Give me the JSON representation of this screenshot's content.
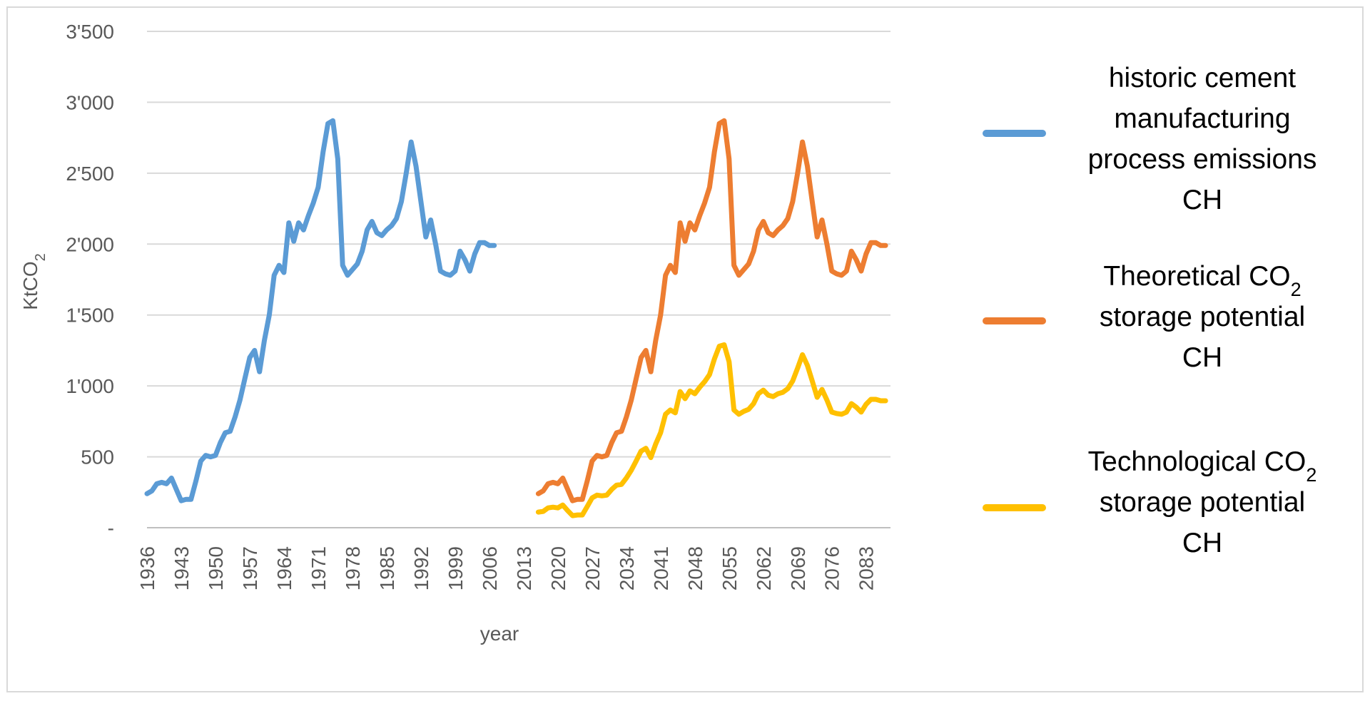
{
  "chart_data": {
    "type": "line",
    "title": "",
    "xlabel": "year",
    "ylabel": "KtCO",
    "ylabel_subscript": "2",
    "ylim": [
      0,
      3500
    ],
    "y_ticks": [
      0,
      500,
      1000,
      1500,
      2000,
      2500,
      3000,
      3500
    ],
    "y_tick_labels": [
      "-",
      "500",
      "1'000",
      "1'500",
      "2'000",
      "2'500",
      "3'000",
      "3'500"
    ],
    "xlim": [
      1936,
      2088
    ],
    "x_ticks": [
      1936,
      1943,
      1950,
      1957,
      1964,
      1971,
      1978,
      1985,
      1992,
      1999,
      2006,
      2013,
      2020,
      2027,
      2034,
      2041,
      2048,
      2055,
      2062,
      2069,
      2076,
      2083
    ],
    "grid": "horizontal",
    "legend_position": "right",
    "series": [
      {
        "name": "historic cement manufacturing process emissions CH",
        "legend_lines": [
          "historic cement",
          "manufacturing",
          "process emissions",
          "CH"
        ],
        "color": "#5b9bd5",
        "points": [
          [
            1936,
            240
          ],
          [
            1937,
            260
          ],
          [
            1938,
            310
          ],
          [
            1939,
            320
          ],
          [
            1940,
            310
          ],
          [
            1941,
            350
          ],
          [
            1942,
            270
          ],
          [
            1943,
            190
          ],
          [
            1944,
            200
          ],
          [
            1945,
            200
          ],
          [
            1946,
            330
          ],
          [
            1947,
            470
          ],
          [
            1948,
            510
          ],
          [
            1949,
            500
          ],
          [
            1950,
            510
          ],
          [
            1951,
            600
          ],
          [
            1952,
            670
          ],
          [
            1953,
            680
          ],
          [
            1954,
            780
          ],
          [
            1955,
            900
          ],
          [
            1956,
            1050
          ],
          [
            1957,
            1200
          ],
          [
            1958,
            1250
          ],
          [
            1959,
            1100
          ],
          [
            1960,
            1320
          ],
          [
            1961,
            1500
          ],
          [
            1962,
            1780
          ],
          [
            1963,
            1850
          ],
          [
            1964,
            1800
          ],
          [
            1965,
            2150
          ],
          [
            1966,
            2020
          ],
          [
            1967,
            2150
          ],
          [
            1968,
            2100
          ],
          [
            1969,
            2200
          ],
          [
            1970,
            2290
          ],
          [
            1971,
            2400
          ],
          [
            1972,
            2650
          ],
          [
            1973,
            2850
          ],
          [
            1974,
            2870
          ],
          [
            1975,
            2600
          ],
          [
            1976,
            1850
          ],
          [
            1977,
            1780
          ],
          [
            1978,
            1820
          ],
          [
            1979,
            1860
          ],
          [
            1980,
            1950
          ],
          [
            1981,
            2100
          ],
          [
            1982,
            2160
          ],
          [
            1983,
            2080
          ],
          [
            1984,
            2060
          ],
          [
            1985,
            2100
          ],
          [
            1986,
            2130
          ],
          [
            1987,
            2180
          ],
          [
            1988,
            2300
          ],
          [
            1989,
            2500
          ],
          [
            1990,
            2720
          ],
          [
            1991,
            2550
          ],
          [
            1992,
            2300
          ],
          [
            1993,
            2050
          ],
          [
            1994,
            2170
          ],
          [
            1995,
            2000
          ],
          [
            1996,
            1810
          ],
          [
            1997,
            1790
          ],
          [
            1998,
            1780
          ],
          [
            1999,
            1810
          ],
          [
            2000,
            1950
          ],
          [
            2001,
            1890
          ],
          [
            2002,
            1810
          ],
          [
            2003,
            1930
          ],
          [
            2004,
            2010
          ],
          [
            2005,
            2010
          ],
          [
            2006,
            1990
          ],
          [
            2007,
            1990
          ]
        ]
      },
      {
        "name": "Theoretical CO2 storage potential CH",
        "legend_lines": [
          "Theoretical CO",
          "storage potential",
          "CH"
        ],
        "legend_subscript_line": 0,
        "color": "#ed7d31",
        "points": [
          [
            2016,
            240
          ],
          [
            2017,
            260
          ],
          [
            2018,
            310
          ],
          [
            2019,
            320
          ],
          [
            2020,
            310
          ],
          [
            2021,
            350
          ],
          [
            2022,
            270
          ],
          [
            2023,
            190
          ],
          [
            2024,
            200
          ],
          [
            2025,
            200
          ],
          [
            2026,
            330
          ],
          [
            2027,
            470
          ],
          [
            2028,
            510
          ],
          [
            2029,
            500
          ],
          [
            2030,
            510
          ],
          [
            2031,
            600
          ],
          [
            2032,
            670
          ],
          [
            2033,
            680
          ],
          [
            2034,
            780
          ],
          [
            2035,
            900
          ],
          [
            2036,
            1050
          ],
          [
            2037,
            1200
          ],
          [
            2038,
            1250
          ],
          [
            2039,
            1100
          ],
          [
            2040,
            1320
          ],
          [
            2041,
            1500
          ],
          [
            2042,
            1780
          ],
          [
            2043,
            1850
          ],
          [
            2044,
            1800
          ],
          [
            2045,
            2150
          ],
          [
            2046,
            2020
          ],
          [
            2047,
            2150
          ],
          [
            2048,
            2100
          ],
          [
            2049,
            2200
          ],
          [
            2050,
            2290
          ],
          [
            2051,
            2400
          ],
          [
            2052,
            2650
          ],
          [
            2053,
            2850
          ],
          [
            2054,
            2870
          ],
          [
            2055,
            2600
          ],
          [
            2056,
            1850
          ],
          [
            2057,
            1780
          ],
          [
            2058,
            1820
          ],
          [
            2059,
            1860
          ],
          [
            2060,
            1950
          ],
          [
            2061,
            2100
          ],
          [
            2062,
            2160
          ],
          [
            2063,
            2080
          ],
          [
            2064,
            2060
          ],
          [
            2065,
            2100
          ],
          [
            2066,
            2130
          ],
          [
            2067,
            2180
          ],
          [
            2068,
            2300
          ],
          [
            2069,
            2500
          ],
          [
            2070,
            2720
          ],
          [
            2071,
            2550
          ],
          [
            2072,
            2300
          ],
          [
            2073,
            2050
          ],
          [
            2074,
            2170
          ],
          [
            2075,
            2000
          ],
          [
            2076,
            1810
          ],
          [
            2077,
            1790
          ],
          [
            2078,
            1780
          ],
          [
            2079,
            1810
          ],
          [
            2080,
            1950
          ],
          [
            2081,
            1890
          ],
          [
            2082,
            1810
          ],
          [
            2083,
            1930
          ],
          [
            2084,
            2010
          ],
          [
            2085,
            2010
          ],
          [
            2086,
            1990
          ],
          [
            2087,
            1990
          ]
        ]
      },
      {
        "name": "Technological CO2 storage potential CH",
        "legend_lines": [
          "Technological CO",
          "storage potential",
          "CH"
        ],
        "legend_subscript_line": 0,
        "color": "#ffc000",
        "points": [
          [
            2016,
            110
          ],
          [
            2017,
            115
          ],
          [
            2018,
            140
          ],
          [
            2019,
            145
          ],
          [
            2020,
            140
          ],
          [
            2021,
            160
          ],
          [
            2022,
            120
          ],
          [
            2023,
            85
          ],
          [
            2024,
            90
          ],
          [
            2025,
            90
          ],
          [
            2026,
            150
          ],
          [
            2027,
            210
          ],
          [
            2028,
            230
          ],
          [
            2029,
            225
          ],
          [
            2030,
            230
          ],
          [
            2031,
            270
          ],
          [
            2032,
            300
          ],
          [
            2033,
            305
          ],
          [
            2034,
            350
          ],
          [
            2035,
            405
          ],
          [
            2036,
            470
          ],
          [
            2037,
            540
          ],
          [
            2038,
            560
          ],
          [
            2039,
            495
          ],
          [
            2040,
            590
          ],
          [
            2041,
            670
          ],
          [
            2042,
            800
          ],
          [
            2043,
            830
          ],
          [
            2044,
            810
          ],
          [
            2045,
            960
          ],
          [
            2046,
            910
          ],
          [
            2047,
            965
          ],
          [
            2048,
            945
          ],
          [
            2049,
            990
          ],
          [
            2050,
            1030
          ],
          [
            2051,
            1080
          ],
          [
            2052,
            1190
          ],
          [
            2053,
            1280
          ],
          [
            2054,
            1290
          ],
          [
            2055,
            1170
          ],
          [
            2056,
            830
          ],
          [
            2057,
            800
          ],
          [
            2058,
            820
          ],
          [
            2059,
            835
          ],
          [
            2060,
            875
          ],
          [
            2061,
            945
          ],
          [
            2062,
            970
          ],
          [
            2063,
            935
          ],
          [
            2064,
            925
          ],
          [
            2065,
            945
          ],
          [
            2066,
            955
          ],
          [
            2067,
            980
          ],
          [
            2068,
            1035
          ],
          [
            2069,
            1125
          ],
          [
            2070,
            1220
          ],
          [
            2071,
            1145
          ],
          [
            2072,
            1035
          ],
          [
            2073,
            920
          ],
          [
            2074,
            975
          ],
          [
            2075,
            900
          ],
          [
            2076,
            815
          ],
          [
            2077,
            805
          ],
          [
            2078,
            800
          ],
          [
            2079,
            815
          ],
          [
            2080,
            875
          ],
          [
            2081,
            850
          ],
          [
            2082,
            815
          ],
          [
            2083,
            870
          ],
          [
            2084,
            905
          ],
          [
            2085,
            905
          ],
          [
            2086,
            895
          ],
          [
            2087,
            895
          ]
        ]
      }
    ]
  }
}
